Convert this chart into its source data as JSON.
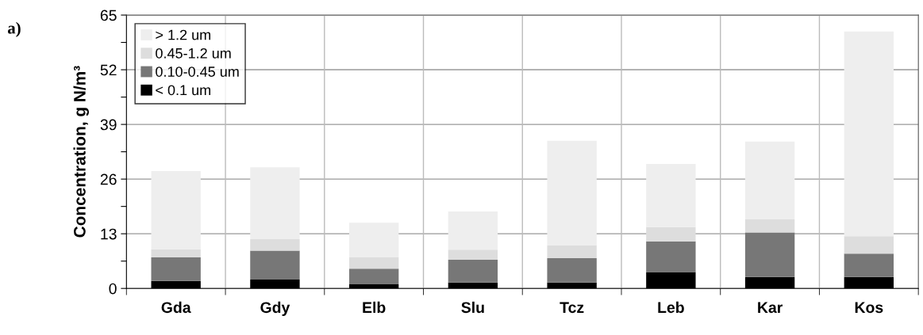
{
  "chart_data": {
    "type": "bar",
    "stacked": true,
    "ylabel": "Concentration, g N/m³",
    "annotations": [
      "a)"
    ],
    "categories": [
      "Gda",
      "Gdy",
      "Elb",
      "Slu",
      "Tcz",
      "Leb",
      "Kar",
      "Kos"
    ],
    "series": [
      {
        "name": "< 0.1 um",
        "color": "#000000",
        "values": [
          1.8,
          2.1,
          1.0,
          1.4,
          1.4,
          3.9,
          2.7,
          2.7
        ]
      },
      {
        "name": "0.10-0.45 um",
        "color": "#777777",
        "values": [
          5.6,
          6.9,
          3.7,
          5.4,
          5.8,
          7.3,
          10.6,
          5.6
        ]
      },
      {
        "name": "0.45-1.2 um",
        "color": "#dddddd",
        "values": [
          1.9,
          2.7,
          2.8,
          2.4,
          3.0,
          3.4,
          3.1,
          4.1
        ]
      },
      {
        "name": "> 1.2 um",
        "color": "#eeeeee",
        "values": [
          18.6,
          17.1,
          8.1,
          9.1,
          24.9,
          15.0,
          18.5,
          48.7
        ]
      }
    ],
    "ylim": [
      0,
      65
    ],
    "yticks": [
      0,
      {
        "value": 6.5,
        "label": null
      },
      13,
      {
        "value": 19.5,
        "label": null
      },
      26,
      {
        "value": 32.5,
        "label": null
      },
      39,
      {
        "value": 45.5,
        "label": null
      },
      52,
      {
        "value": 58.5,
        "label": null
      },
      65
    ],
    "grid": true,
    "legend": "top left"
  }
}
